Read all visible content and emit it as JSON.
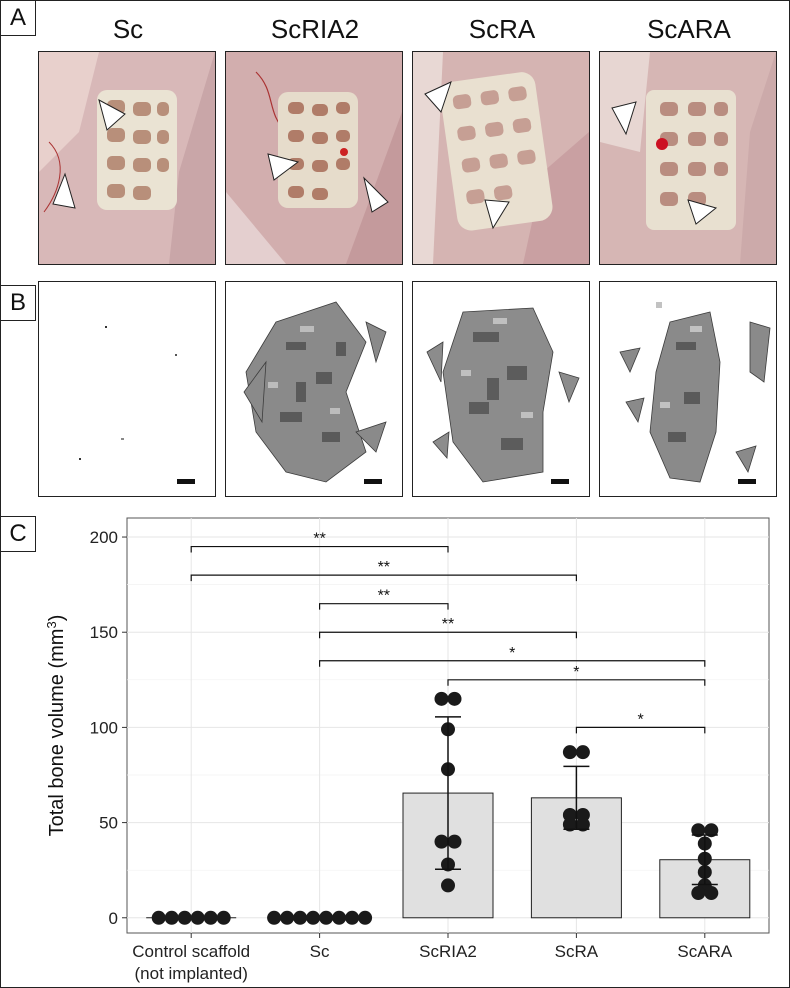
{
  "panels": {
    "a_label": "A",
    "b_label": "B",
    "c_label": "C"
  },
  "groups": [
    "Sc",
    "ScRIA2",
    "ScRA",
    "ScARA"
  ],
  "chart_data": {
    "type": "bar",
    "ylabel": "Total bone volume (mm",
    "ylabel_sup": "3",
    "ylabel_close": ")",
    "ylim": [
      -8,
      210
    ],
    "yticks": [
      0,
      50,
      100,
      150,
      200
    ],
    "grid": true,
    "categories": [
      {
        "label": "Control scaffold",
        "sublabel": "(not implanted)"
      },
      {
        "label": "Sc",
        "sublabel": ""
      },
      {
        "label": "ScRIA2",
        "sublabel": ""
      },
      {
        "label": "ScRA",
        "sublabel": ""
      },
      {
        "label": "ScARA",
        "sublabel": ""
      }
    ],
    "values": [
      0,
      0,
      65.5,
      63,
      30.5
    ],
    "sd": [
      0,
      0,
      40,
      16.5,
      13
    ],
    "points": [
      [
        0,
        0,
        0,
        0,
        0,
        0
      ],
      [
        0,
        0,
        0,
        0,
        0,
        0,
        0,
        0
      ],
      [
        115,
        115,
        99,
        78,
        40,
        40,
        28,
        17
      ],
      [
        87,
        87,
        54,
        54,
        49,
        49
      ],
      [
        46,
        46,
        39,
        31,
        24,
        17,
        13,
        13
      ]
    ],
    "bar_color": "#e0e0e0",
    "significance": [
      {
        "from": 0,
        "to": 2,
        "y": 195,
        "label": "**"
      },
      {
        "from": 0,
        "to": 3,
        "y": 180,
        "label": "**"
      },
      {
        "from": 1,
        "to": 2,
        "y": 165,
        "label": "**"
      },
      {
        "from": 1,
        "to": 3,
        "y": 150,
        "label": "**"
      },
      {
        "from": 1,
        "to": 4,
        "y": 135,
        "label": "*"
      },
      {
        "from": 2,
        "to": 4,
        "y": 125,
        "label": "*"
      },
      {
        "from": 3,
        "to": 4,
        "y": 100,
        "label": "*"
      }
    ]
  }
}
